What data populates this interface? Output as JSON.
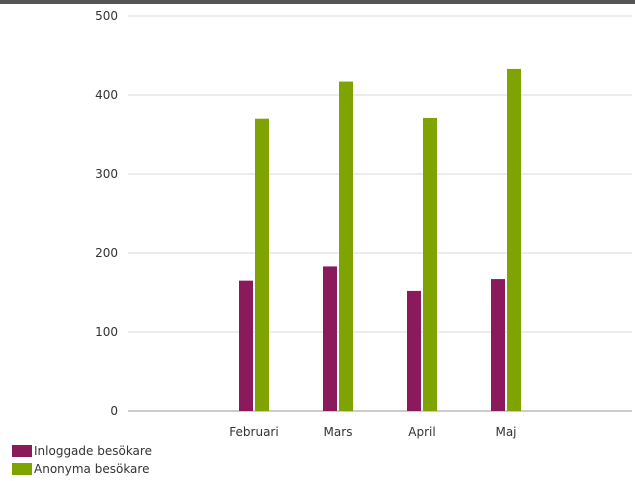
{
  "chart_data": {
    "type": "bar",
    "categories": [
      "Februari",
      "Mars",
      "April",
      "Maj"
    ],
    "series": [
      {
        "name": "Inloggade besökare",
        "values": [
          165,
          183,
          152,
          167
        ],
        "color": "#8a1a5c"
      },
      {
        "name": "Anonyma besökare",
        "values": [
          370,
          417,
          371,
          433
        ],
        "color": "#7fa300"
      }
    ],
    "yticks": [
      0,
      100,
      200,
      300,
      400,
      500
    ],
    "ylim": [
      0,
      500
    ],
    "grid": true,
    "legend_position": "bottom-left"
  }
}
